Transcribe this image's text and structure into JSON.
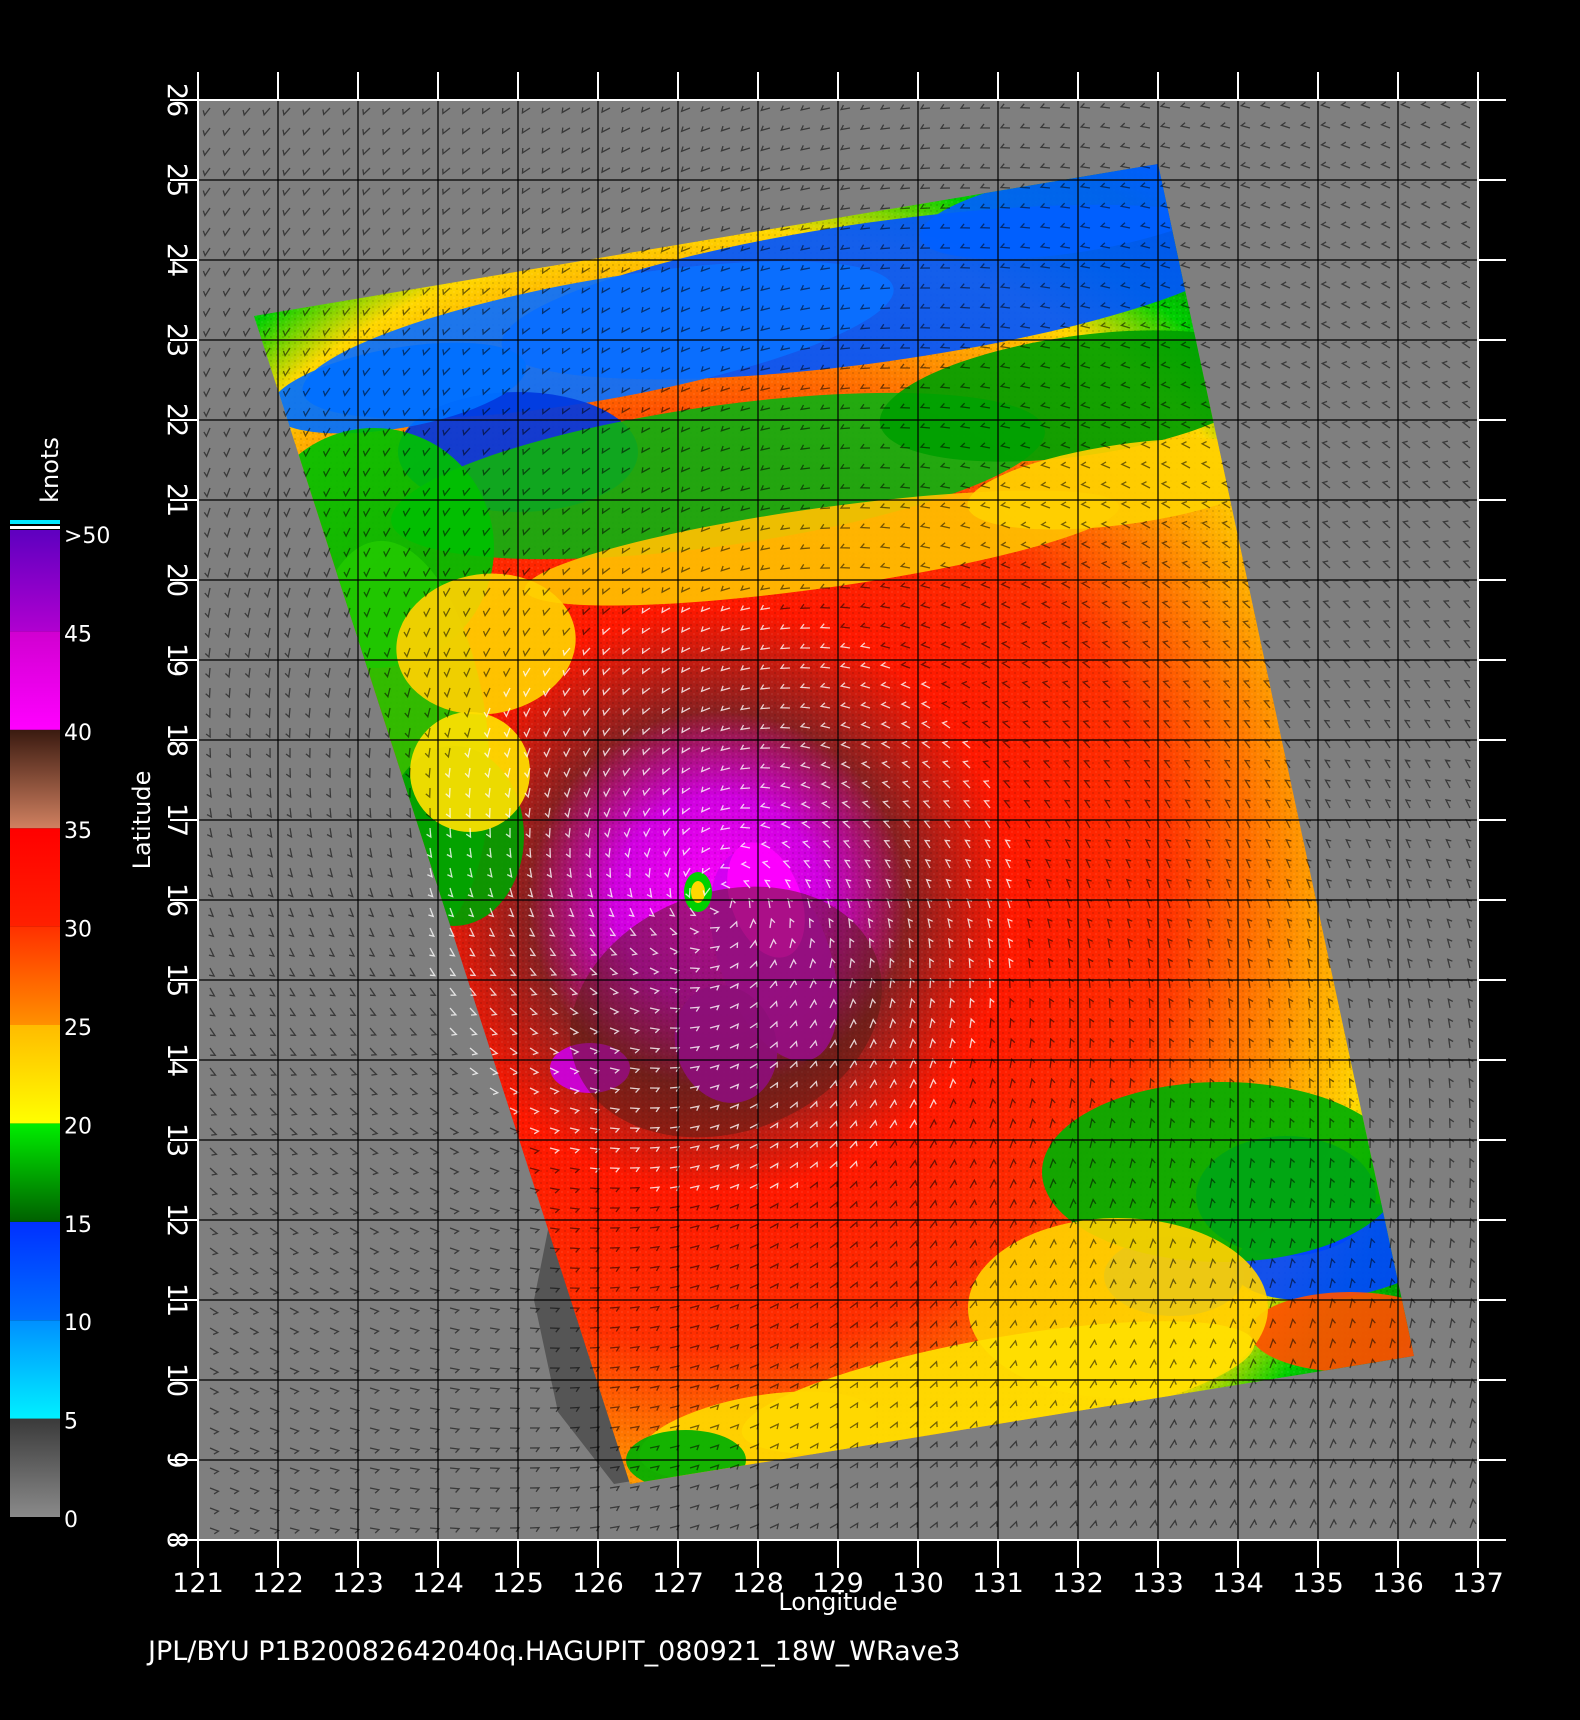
{
  "map": {
    "title": "JPL/BYU  P1B20082642040q.HAGUPIT_080921_18W_WRave3",
    "xlabel": "Longitude",
    "ylabel": "Latitude",
    "lon_range": [
      121,
      137
    ],
    "lat_range": [
      8,
      26
    ],
    "lon_ticks": [
      "121",
      "122",
      "123",
      "124",
      "125",
      "126",
      "127",
      "128",
      "129",
      "130",
      "131",
      "132",
      "133",
      "134",
      "135",
      "136",
      "137"
    ],
    "lat_ticks": [
      "8",
      "9",
      "10",
      "11",
      "12",
      "13",
      "14",
      "15",
      "16",
      "17",
      "18",
      "19",
      "20",
      "21",
      "22",
      "23",
      "24",
      "25",
      "26"
    ],
    "background_color": "#7f7f7f",
    "land_color": "#555555",
    "storm_center": {
      "lon": 127.5,
      "lat": 16.0
    },
    "swath_corners": [
      {
        "lon": 121.7,
        "lat": 23.3
      },
      {
        "lon": 133.0,
        "lat": 25.2
      },
      {
        "lon": 136.2,
        "lat": 10.3
      },
      {
        "lon": 126.4,
        "lat": 8.7
      }
    ]
  },
  "colorbar": {
    "unit_label": "knots",
    "labels": [
      "0",
      "5",
      "10",
      "15",
      "20",
      "25",
      "30",
      "35",
      "40",
      "45",
      ">50"
    ],
    "bands": [
      {
        "from": 0,
        "to": 5,
        "colors": [
          "#8a8a8a",
          "#3a3a3a"
        ]
      },
      {
        "from": 5,
        "to": 10,
        "colors": [
          "#00f0ff",
          "#0090ff"
        ]
      },
      {
        "from": 10,
        "to": 15,
        "colors": [
          "#0070ff",
          "#0030ff"
        ]
      },
      {
        "from": 15,
        "to": 20,
        "colors": [
          "#006000",
          "#00ee00"
        ]
      },
      {
        "from": 20,
        "to": 25,
        "colors": [
          "#ffff00",
          "#ffbb00"
        ]
      },
      {
        "from": 25,
        "to": 30,
        "colors": [
          "#ff9000",
          "#ff3000"
        ]
      },
      {
        "from": 30,
        "to": 35,
        "colors": [
          "#ff2000",
          "#ff0000"
        ]
      },
      {
        "from": 35,
        "to": 40,
        "colors": [
          "#d08060",
          "#3a1a10"
        ]
      },
      {
        "from": 40,
        "to": 45,
        "colors": [
          "#ff00ff",
          "#d000d0"
        ]
      },
      {
        "from": 45,
        "to": 50,
        "colors": [
          "#b000d0",
          "#6000c0"
        ]
      }
    ]
  }
}
